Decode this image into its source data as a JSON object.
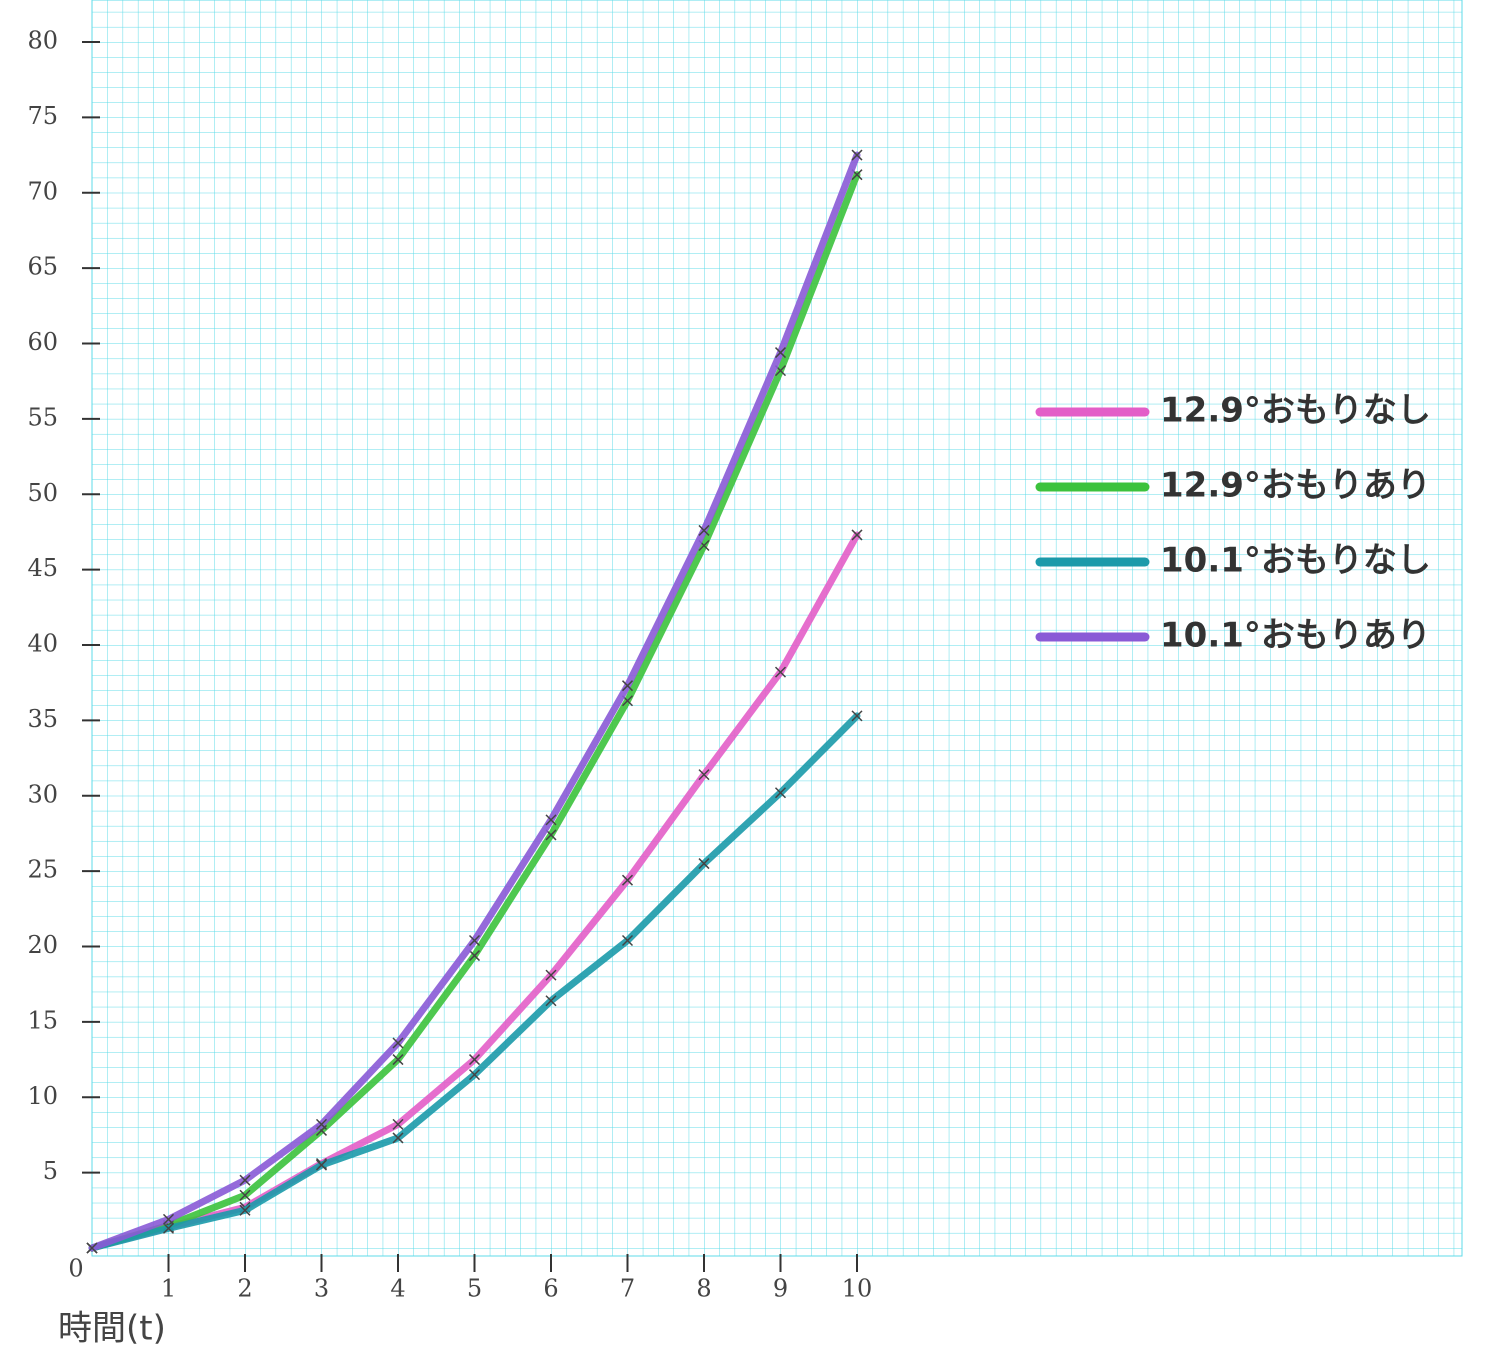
{
  "chart_data": {
    "type": "line",
    "x_label": "時間(t)",
    "x": [
      0,
      1,
      2,
      3,
      4,
      5,
      6,
      7,
      8,
      9,
      10
    ],
    "series": [
      {
        "name": "12.9°おもりなし",
        "color": "#e35ec8",
        "values": [
          0,
          1.4,
          2.7,
          5.6,
          8.2,
          12.5,
          18.1,
          24.4,
          31.4,
          38.2,
          47.3
        ]
      },
      {
        "name": "12.9°おもりあり",
        "color": "#3cc23c",
        "values": [
          0,
          1.5,
          3.5,
          7.8,
          12.5,
          19.4,
          27.4,
          36.3,
          46.6,
          58.2,
          71.2
        ]
      },
      {
        "name": "10.1°おもりなし",
        "color": "#1b9aaa",
        "values": [
          0,
          1.3,
          2.5,
          5.5,
          7.3,
          11.5,
          16.4,
          20.4,
          25.5,
          30.2,
          35.3
        ]
      },
      {
        "name": "10.1°おもりあり",
        "color": "#8a5ad6",
        "values": [
          0,
          1.9,
          4.5,
          8.2,
          13.6,
          20.4,
          28.4,
          37.3,
          47.6,
          59.4,
          72.5
        ]
      }
    ],
    "xlim": [
      0,
      10
    ],
    "xticks": [
      0,
      1,
      2,
      3,
      4,
      5,
      6,
      7,
      8,
      9,
      10
    ],
    "ylim": [
      0,
      80
    ],
    "yticks": [
      5,
      10,
      15,
      20,
      25,
      30,
      35,
      40,
      45,
      50,
      55,
      60,
      65,
      70,
      75,
      80
    ],
    "legend": "right"
  }
}
